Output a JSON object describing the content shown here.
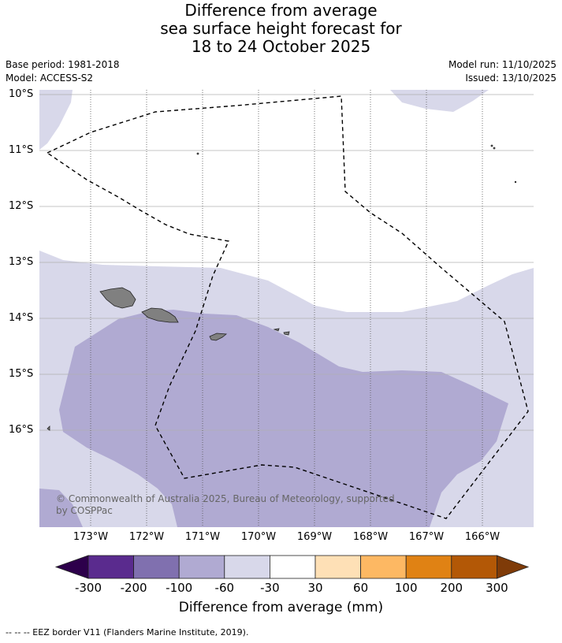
{
  "title": {
    "line1": "Difference from average",
    "line2": "sea surface height forecast for",
    "line3": "18 to 24 October 2025"
  },
  "meta": {
    "base_period": "Base period: 1981-2018",
    "model": "Model: ACCESS-S2",
    "model_run": "Model run: 11/10/2025",
    "issued": "Issued: 13/10/2025"
  },
  "map": {
    "latitude_labels": [
      "10°S",
      "11°S",
      "12°S",
      "13°S",
      "14°S",
      "15°S",
      "16°S"
    ],
    "longitude_labels": [
      "173°W",
      "172°W",
      "171°W",
      "170°W",
      "169°W",
      "168°W",
      "167°W",
      "166°W"
    ],
    "copyright": "© Commonwealth of Australia 2025, Bureau of Meteorology, supported by COSPPac",
    "colors": {
      "land": "#808080",
      "ocean_neutral": "#ffffff",
      "minus30_60": "#d8d8ea",
      "minus60_100": "#b0aad2"
    }
  },
  "colorbar": {
    "ticks": [
      "-300",
      "-200",
      "-100",
      "-60",
      "-30",
      "30",
      "60",
      "100",
      "200",
      "300"
    ],
    "label": "Difference from average (mm)",
    "colors": [
      "#2d004b",
      "#5a2b8e",
      "#8070af",
      "#b0aad2",
      "#d8d8ea",
      "#ffffff",
      "#fee0b6",
      "#fdb863",
      "#e08214",
      "#b35806",
      "#7f3b08"
    ]
  },
  "footer": "-- -- -- EEZ border V11 (Flanders Marine Institute, 2019)."
}
